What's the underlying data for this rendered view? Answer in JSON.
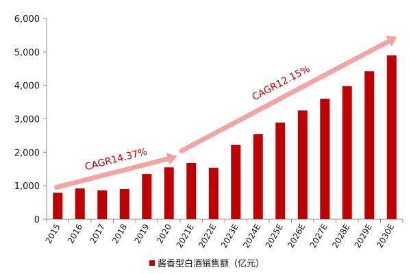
{
  "chart_data": {
    "type": "bar",
    "categories": [
      "2015",
      "2016",
      "2017",
      "2018",
      "2019",
      "2020",
      "2021E",
      "2022E",
      "2023E",
      "2024E",
      "2025E",
      "2026E",
      "2027E",
      "2028E",
      "2029E",
      "2030E"
    ],
    "series": [
      {
        "name": "酱香型白酒销售额（亿元）",
        "values": [
          790,
          920,
          860,
          900,
          1350,
          1550,
          1680,
          1540,
          2220,
          2540,
          2890,
          3250,
          3600,
          3980,
          4420,
          4900
        ],
        "color": "#c00000"
      }
    ],
    "ylim": [
      0,
      6000
    ],
    "yticks": [
      "0",
      "1,000",
      "2,000",
      "3,000",
      "4,000",
      "5,000",
      "6,000"
    ],
    "ytick_values": [
      0,
      1000,
      2000,
      3000,
      4000,
      5000,
      6000
    ],
    "grid": false,
    "legend": "bottom-center",
    "annotations": [
      {
        "text": "CAGR14.37%",
        "from": "2015",
        "to": "2020",
        "arrow_color": "#f4a3a3"
      },
      {
        "text": "CAGR12.15%",
        "from": "2020",
        "to": "2030E",
        "arrow_color": "#f4a3a3"
      }
    ]
  }
}
